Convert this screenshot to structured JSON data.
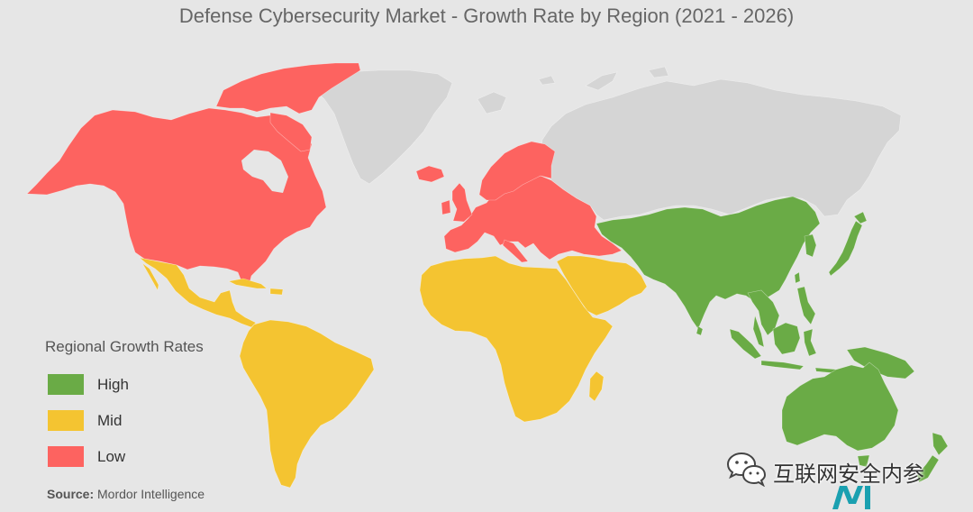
{
  "title": "Defense Cybersecurity Market - Growth Rate by Region (2021 - 2026)",
  "map": {
    "background_color": "#e6e6e6",
    "water_color": "#e6e6e6",
    "no_data_color": "#d5d5d5"
  },
  "legend": {
    "title": "Regional Growth Rates",
    "items": [
      {
        "label": "High",
        "color": "#6aab46"
      },
      {
        "label": "Mid",
        "color": "#f4c431"
      },
      {
        "label": "Low",
        "color": "#fd6360"
      }
    ]
  },
  "source": {
    "label": "Source:",
    "text": "Mordor Intelligence"
  },
  "watermark": {
    "icon": "wechat-icon",
    "text": "互联网安全内参"
  },
  "logo": {
    "icon": "mordor-intelligence-logo",
    "color": "#1aa0b0"
  }
}
